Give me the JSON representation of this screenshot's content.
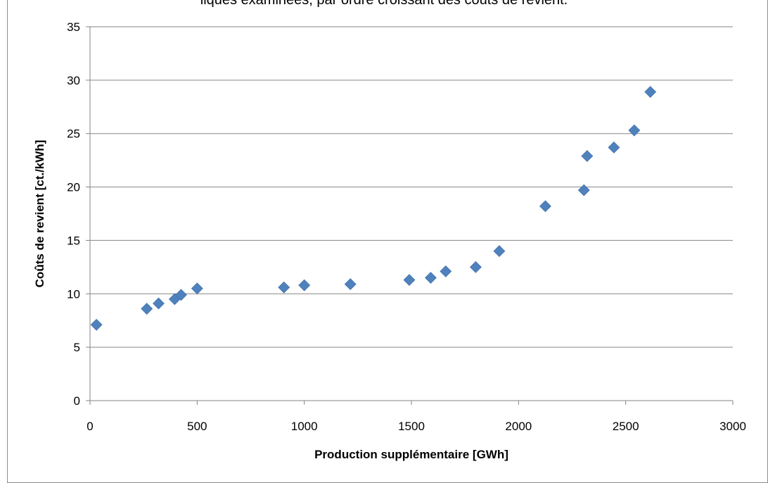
{
  "caption": "liques examinées, par ordre croissant des coûts de revient.",
  "chart_data": {
    "type": "scatter",
    "xlabel": "Production supplémentaire [GWh]",
    "ylabel": "Coûts de revient [ct./kWh]",
    "xlim": [
      0,
      3000
    ],
    "ylim": [
      0,
      35
    ],
    "xticks": [
      0,
      500,
      1000,
      1500,
      2000,
      2500,
      3000
    ],
    "yticks": [
      0,
      5,
      10,
      15,
      20,
      25,
      30,
      35
    ],
    "grid": "horizontal",
    "marker": "diamond",
    "color": "#4f81bd",
    "points": [
      {
        "x": 30,
        "y": 7.1
      },
      {
        "x": 265,
        "y": 8.6
      },
      {
        "x": 320,
        "y": 9.1
      },
      {
        "x": 395,
        "y": 9.5
      },
      {
        "x": 425,
        "y": 9.9
      },
      {
        "x": 500,
        "y": 10.5
      },
      {
        "x": 905,
        "y": 10.6
      },
      {
        "x": 1000,
        "y": 10.8
      },
      {
        "x": 1215,
        "y": 10.9
      },
      {
        "x": 1490,
        "y": 11.3
      },
      {
        "x": 1590,
        "y": 11.5
      },
      {
        "x": 1660,
        "y": 12.1
      },
      {
        "x": 1800,
        "y": 12.5
      },
      {
        "x": 1910,
        "y": 14.0
      },
      {
        "x": 2125,
        "y": 18.2
      },
      {
        "x": 2305,
        "y": 19.7
      },
      {
        "x": 2320,
        "y": 22.9
      },
      {
        "x": 2445,
        "y": 23.7
      },
      {
        "x": 2540,
        "y": 25.3
      },
      {
        "x": 2615,
        "y": 28.9
      }
    ]
  }
}
